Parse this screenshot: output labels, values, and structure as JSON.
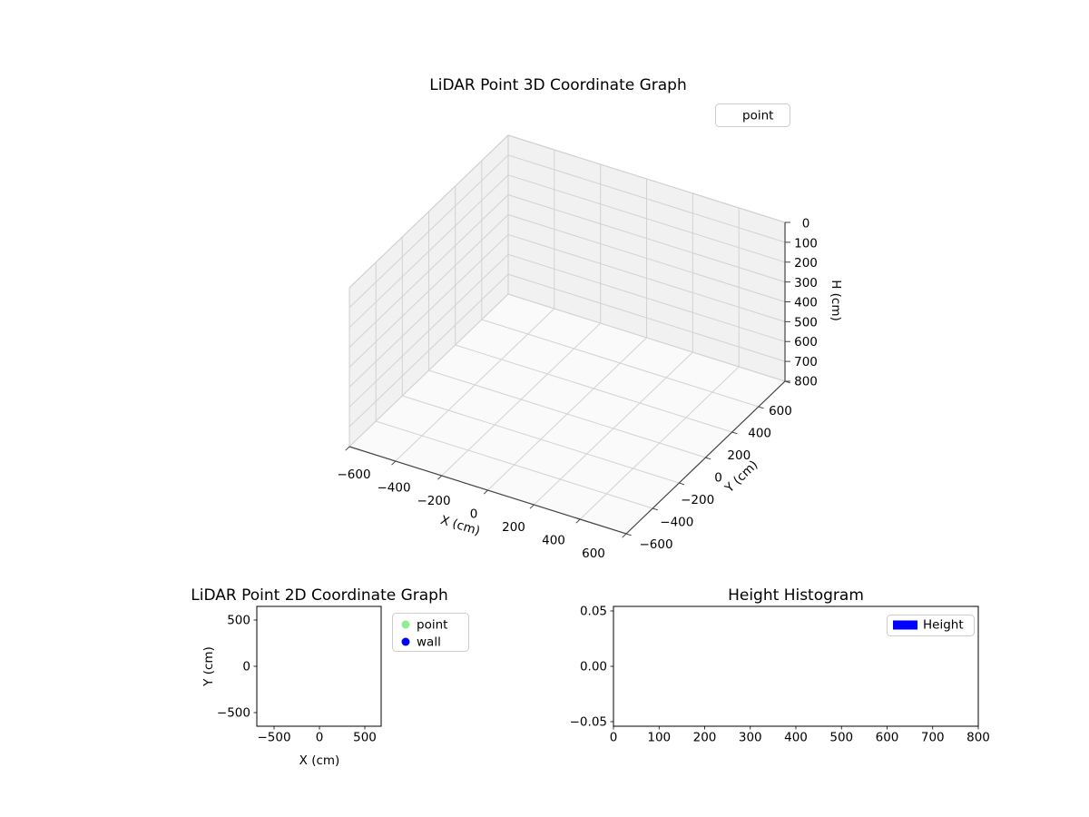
{
  "figure": {
    "background": "#ffffff"
  },
  "plot3d": {
    "title": "LiDAR Point 3D Coordinate Graph",
    "xlabel": "X (cm)",
    "ylabel": "Y (cm)",
    "zlabel": "H (cm)",
    "xtick_labels": [
      "−600",
      "−400",
      "−200",
      "0",
      "200",
      "400",
      "600"
    ],
    "ytick_labels": [
      "−600",
      "−400",
      "−200",
      "0",
      "200",
      "400",
      "600"
    ],
    "ztick_labels": [
      "0",
      "100",
      "200",
      "300",
      "400",
      "500",
      "600",
      "700",
      "800"
    ],
    "legend": {
      "label": "point"
    }
  },
  "plot2d": {
    "title": "LiDAR Point 2D Coordinate Graph",
    "xlabel": "X (cm)",
    "ylabel": "Y (cm)",
    "xtick_labels": [
      "−500",
      "0",
      "500"
    ],
    "ytick_labels": [
      "500",
      "0",
      "−500"
    ],
    "legend": [
      {
        "label": "point",
        "color": "#90ee90"
      },
      {
        "label": "wall",
        "color": "#0000ff"
      }
    ]
  },
  "hist": {
    "title": "Height Histogram",
    "xtick_labels": [
      "0",
      "100",
      "200",
      "300",
      "400",
      "500",
      "600",
      "700",
      "800"
    ],
    "ytick_labels": [
      "0.05",
      "0.00",
      "−0.05"
    ],
    "legend": {
      "label": "Height",
      "color": "#0000ff"
    }
  },
  "chart_data": [
    {
      "type": "scatter",
      "projection": "3d",
      "title": "LiDAR Point 3D Coordinate Graph",
      "xlabel": "X (cm)",
      "ylabel": "Y (cm)",
      "zlabel": "H (cm)",
      "xticks": [
        -600,
        -400,
        -200,
        0,
        200,
        400,
        600
      ],
      "yticks": [
        -600,
        -400,
        -200,
        0,
        200,
        400,
        600
      ],
      "zticks": [
        0,
        100,
        200,
        300,
        400,
        500,
        600,
        700,
        800
      ],
      "xlim": [
        -700,
        700
      ],
      "ylim": [
        -700,
        700
      ],
      "zlim": [
        0,
        800
      ],
      "zaxis_inverted": true,
      "grid": true,
      "legend": [
        "point"
      ],
      "legend_position": "upper right",
      "series": [
        {
          "name": "point",
          "points": []
        }
      ]
    },
    {
      "type": "scatter",
      "title": "LiDAR Point 2D Coordinate Graph",
      "xlabel": "X (cm)",
      "ylabel": "Y (cm)",
      "xticks": [
        -500,
        0,
        500
      ],
      "yticks": [
        -500,
        0,
        500
      ],
      "xlim": [
        -690,
        680
      ],
      "ylim": [
        -650,
        650
      ],
      "grid": false,
      "legend": [
        "point",
        "wall"
      ],
      "legend_position": "outside upper right",
      "series": [
        {
          "name": "point",
          "color": "#90ee90",
          "points": []
        },
        {
          "name": "wall",
          "color": "#0000ff",
          "points": []
        }
      ]
    },
    {
      "type": "bar",
      "subtype": "histogram",
      "title": "Height Histogram",
      "xlabel": "",
      "ylabel": "",
      "xticks": [
        0,
        100,
        200,
        300,
        400,
        500,
        600,
        700,
        800
      ],
      "yticks": [
        -0.05,
        0,
        0.05
      ],
      "xlim": [
        0,
        800
      ],
      "ylim": [
        -0.054,
        0.054
      ],
      "grid": false,
      "legend": [
        "Height"
      ],
      "legend_position": "upper right",
      "series": [
        {
          "name": "Height",
          "color": "#0000ff",
          "values": []
        }
      ]
    }
  ]
}
